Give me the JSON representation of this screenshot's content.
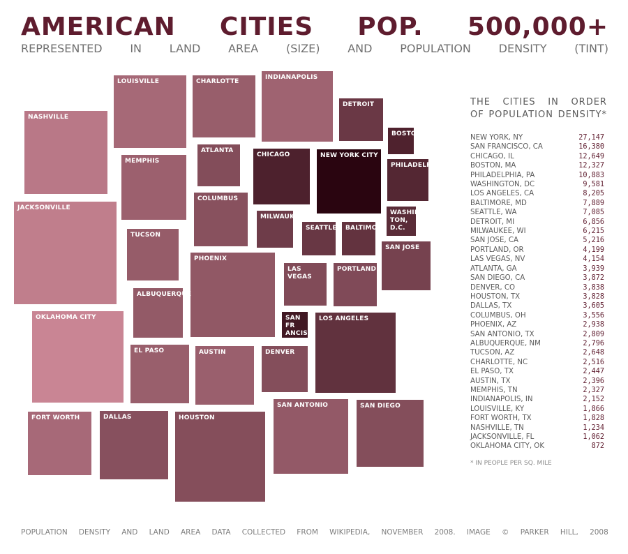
{
  "title_words": [
    "AMERICAN",
    "CITIES",
    "POP.",
    "500,000+"
  ],
  "subtitle_words": [
    "REPRESENTED",
    "IN",
    "LAND",
    "AREA",
    "(SIZE)",
    "AND",
    "POPULATION",
    "DENSITY",
    "(TINT)"
  ],
  "chart_data": {
    "type": "treemap",
    "encoding": "block size = land area, tint = population density",
    "cities": [
      {
        "name": "NASHVILLE",
        "density": 1234
      },
      {
        "name": "LOUISVILLE",
        "density": 1866
      },
      {
        "name": "CHARLOTTE",
        "density": 2516
      },
      {
        "name": "INDIANAPOLIS",
        "density": 2152
      },
      {
        "name": "DETROIT",
        "density": 6856
      },
      {
        "name": "BOSTON",
        "density": 12327
      },
      {
        "name": "ATLANTA",
        "density": 3939
      },
      {
        "name": "CHICAGO",
        "density": 12649
      },
      {
        "name": "NEW YORK CITY",
        "density": 27147
      },
      {
        "name": "PHILADELPHIA",
        "density": 10883
      },
      {
        "name": "MEMPHIS",
        "density": 2327
      },
      {
        "name": "JACKSONVILLE",
        "density": 1062
      },
      {
        "name": "COLUMBUS",
        "density": 3556
      },
      {
        "name": "MILWAUKEE",
        "density": 6215
      },
      {
        "name": "WASHING TON, D.C.",
        "density": 9581
      },
      {
        "name": "TUCSON",
        "density": 2648
      },
      {
        "name": "SEATTLE",
        "density": 7085
      },
      {
        "name": "BALTIMORE",
        "density": 7889
      },
      {
        "name": "SAN JOSE",
        "density": 5216
      },
      {
        "name": "PHOENIX",
        "density": 2938
      },
      {
        "name": "LAS VEGAS",
        "density": 4154
      },
      {
        "name": "PORTLAND",
        "density": 4199
      },
      {
        "name": "ALBUQUERQUE",
        "density": 2796
      },
      {
        "name": "OKLAHOMA CITY",
        "density": 872
      },
      {
        "name": "SAN FR ANCISC O",
        "density": 16380
      },
      {
        "name": "LOS ANGELES",
        "density": 8205
      },
      {
        "name": "EL PASO",
        "density": 2447
      },
      {
        "name": "AUSTIN",
        "density": 2396
      },
      {
        "name": "DENVER",
        "density": 3838
      },
      {
        "name": "SAN ANTONIO",
        "density": 2809
      },
      {
        "name": "SAN DIEGO",
        "density": 3872
      },
      {
        "name": "FORT WORTH",
        "density": 1828
      },
      {
        "name": "DALLAS",
        "density": 3605
      },
      {
        "name": "HOUSTON",
        "density": 3828
      }
    ],
    "ranking_title_lines": [
      [
        "THE",
        "CITIES",
        "IN",
        "ORDER"
      ],
      [
        "OF",
        "POPULATION",
        "DENSITY*"
      ]
    ],
    "ranking": [
      {
        "city": "NEW YORK, NY",
        "value": "27,147"
      },
      {
        "city": "SAN FRANCISCO, CA",
        "value": "16,380"
      },
      {
        "city": "CHICAGO, IL",
        "value": "12,649"
      },
      {
        "city": "BOSTON, MA",
        "value": "12,327"
      },
      {
        "city": "PHILADELPHIA, PA",
        "value": "10,883"
      },
      {
        "city": "WASHINGTON, DC",
        "value": "9,581"
      },
      {
        "city": "LOS ANGELES, CA",
        "value": "8,205"
      },
      {
        "city": "BALTIMORE, MD",
        "value": "7,889"
      },
      {
        "city": "SEATTLE, WA",
        "value": "7,085"
      },
      {
        "city": "DETROIT, MI",
        "value": "6,856"
      },
      {
        "city": "MILWAUKEE, WI",
        "value": "6,215"
      },
      {
        "city": "SAN JOSE, CA",
        "value": "5,216"
      },
      {
        "city": "PORTLAND, OR",
        "value": "4,199"
      },
      {
        "city": "LAS VEGAS, NV",
        "value": "4,154"
      },
      {
        "city": "ATLANTA, GA",
        "value": "3,939"
      },
      {
        "city": "SAN DIEGO, CA",
        "value": "3,872"
      },
      {
        "city": "DENVER, CO",
        "value": "3,838"
      },
      {
        "city": "HOUSTON, TX",
        "value": "3,828"
      },
      {
        "city": "DALLAS, TX",
        "value": "3,605"
      },
      {
        "city": "COLUMBUS, OH",
        "value": "3,556"
      },
      {
        "city": "PHOENIX, AZ",
        "value": "2,938"
      },
      {
        "city": "SAN ANTONIO, TX",
        "value": "2,809"
      },
      {
        "city": "ALBUQUERQUE, NM",
        "value": "2,796"
      },
      {
        "city": "TUCSON, AZ",
        "value": "2,648"
      },
      {
        "city": "CHARLOTTE, NC",
        "value": "2,516"
      },
      {
        "city": "EL PASO, TX",
        "value": "2,447"
      },
      {
        "city": "AUSTIN, TX",
        "value": "2,396"
      },
      {
        "city": "MEMPHIS, TN",
        "value": "2,327"
      },
      {
        "city": "INDIANAPOLIS, IN",
        "value": "2,152"
      },
      {
        "city": "LOUISVILLE, KY",
        "value": "1,866"
      },
      {
        "city": "FORT WORTH, TX",
        "value": "1,828"
      },
      {
        "city": "NASHVILLE, TN",
        "value": "1,234"
      },
      {
        "city": "JACKSONVILLE, FL",
        "value": "1,062"
      },
      {
        "city": "OKLAHOMA CITY, OK",
        "value": "872"
      }
    ],
    "footnote": "* IN PEOPLE PER SQ. MILE"
  },
  "footer_words": [
    "POPULATION",
    "DENSITY",
    "AND",
    "LAND",
    "AREA",
    "DATA",
    "COLLECTED",
    "FROM",
    "WIKIPEDIA,",
    "NOVEMBER",
    "2008.",
    "IMAGE",
    "©",
    "PARKER",
    "HILL,",
    "2008"
  ],
  "colors": {
    "title": "#5e1c2e",
    "low_density": "#c98594",
    "high_density": "#2a0510",
    "text_gray": "#6f6f6f"
  }
}
